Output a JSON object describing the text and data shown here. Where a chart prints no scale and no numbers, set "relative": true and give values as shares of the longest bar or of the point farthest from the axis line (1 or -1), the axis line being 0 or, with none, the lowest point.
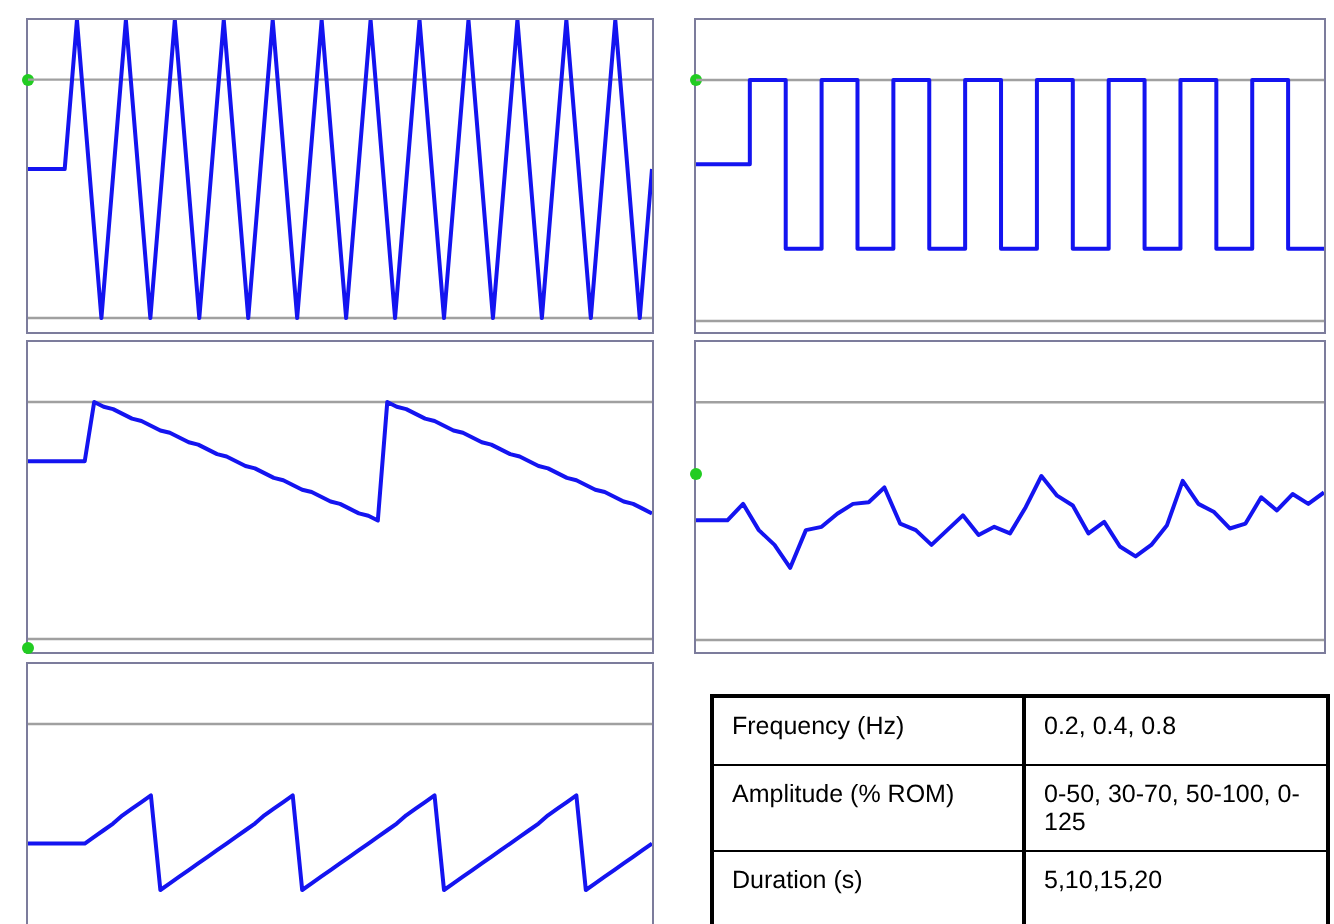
{
  "chart_data": [
    {
      "type": "line",
      "relative": true,
      "color": "#1414f0",
      "categories": [
        null,
        null,
        null,
        null,
        null,
        null,
        null,
        null,
        null,
        null,
        null,
        null,
        null,
        null,
        null,
        null,
        null,
        null,
        null,
        null,
        null,
        null,
        null,
        null,
        null,
        null,
        null,
        null,
        null,
        null,
        null,
        null,
        null,
        null,
        null,
        null,
        null,
        null,
        null,
        null,
        null,
        null,
        null,
        null,
        null,
        null,
        null,
        null,
        null,
        null,
        null,
        null
      ],
      "values": [
        0.5,
        0.5,
        0.5,
        0.5,
        1,
        0.5,
        0,
        0.5,
        1,
        0.5,
        0,
        0.5,
        1,
        0.5,
        0,
        0.5,
        1,
        0.5,
        0,
        0.5,
        1,
        0.5,
        0,
        0.5,
        1,
        0.5,
        0,
        0.5,
        1,
        0.5,
        0,
        0.5,
        1,
        0.5,
        0,
        0.5,
        1,
        0.5,
        0,
        0.5,
        1,
        0.5,
        0,
        0.5,
        1,
        0.5,
        0,
        0.5,
        1,
        0.5,
        0,
        0.5
      ],
      "ref_lines": [
        {
          "axis": "y",
          "value": 0.8,
          "color": "#a0a0a0"
        },
        {
          "axis": "y",
          "value": 0,
          "color": "#a0a0a0"
        }
      ]
    },
    {
      "type": "step",
      "relative": true,
      "color": "#1414f0",
      "categories": [
        null,
        null,
        null,
        null,
        null,
        null,
        null,
        null,
        null,
        null,
        null,
        null,
        null,
        null,
        null,
        null,
        null,
        null,
        null,
        null,
        null,
        null,
        null,
        null,
        null,
        null,
        null,
        null,
        null,
        null,
        null,
        null,
        null,
        null,
        null,
        null
      ],
      "values": [
        0.65,
        0.65,
        0.65,
        1,
        1,
        0.3,
        0.3,
        1,
        1,
        0.3,
        0.3,
        1,
        1,
        0.3,
        0.3,
        1,
        1,
        0.3,
        0.3,
        1,
        1,
        0.3,
        0.3,
        1,
        1,
        0.3,
        0.3,
        1,
        1,
        0.3,
        0.3,
        1,
        1,
        0.3,
        0.3,
        0.3
      ],
      "ref_lines": [
        {
          "axis": "y",
          "value": 1,
          "color": "#a0a0a0"
        },
        {
          "axis": "y",
          "value": 0,
          "color": "#a0a0a0"
        }
      ]
    },
    {
      "type": "line",
      "relative": true,
      "color": "#1414f0",
      "categories": [
        null,
        null,
        null,
        null,
        null,
        null,
        null,
        null,
        null,
        null,
        null,
        null,
        null,
        null,
        null,
        null,
        null,
        null,
        null,
        null,
        null,
        null,
        null,
        null,
        null,
        null,
        null,
        null,
        null,
        null,
        null,
        null,
        null,
        null,
        null,
        null,
        null,
        null,
        null,
        null,
        null,
        null,
        null,
        null,
        null,
        null,
        null,
        null,
        null,
        null,
        null,
        null,
        null,
        null,
        null,
        null,
        null,
        null,
        null,
        null,
        null,
        null,
        null,
        null,
        null,
        null,
        null
      ],
      "values": [
        0.75,
        0.75,
        0.75,
        0.75,
        0.75,
        0.75,
        0.75,
        1,
        0.98,
        0.97,
        0.95,
        0.93,
        0.92,
        0.9,
        0.88,
        0.87,
        0.85,
        0.83,
        0.82,
        0.8,
        0.78,
        0.77,
        0.75,
        0.73,
        0.72,
        0.7,
        0.68,
        0.67,
        0.65,
        0.63,
        0.62,
        0.6,
        0.58,
        0.57,
        0.55,
        0.53,
        0.52,
        0.5,
        1,
        0.98,
        0.97,
        0.95,
        0.93,
        0.92,
        0.9,
        0.88,
        0.87,
        0.85,
        0.83,
        0.82,
        0.8,
        0.78,
        0.77,
        0.75,
        0.73,
        0.72,
        0.7,
        0.68,
        0.67,
        0.65,
        0.63,
        0.62,
        0.6,
        0.58,
        0.57,
        0.55,
        0.53
      ],
      "ref_lines": [
        {
          "axis": "y",
          "value": 1,
          "color": "#a0a0a0"
        },
        {
          "axis": "y",
          "value": 0,
          "color": "#a0a0a0"
        }
      ]
    },
    {
      "type": "line",
      "relative": true,
      "color": "#1414f0",
      "categories": [
        null,
        null,
        null,
        null,
        null,
        null,
        null,
        null,
        null,
        null,
        null,
        null,
        null,
        null,
        null,
        null,
        null,
        null,
        null,
        null,
        null,
        null,
        null,
        null,
        null,
        null,
        null,
        null,
        null,
        null,
        null,
        null,
        null,
        null,
        null,
        null,
        null,
        null,
        null,
        null,
        null
      ],
      "values": [
        0.73,
        0.73,
        0.73,
        0.83,
        0.67,
        0.58,
        0.44,
        0.67,
        0.69,
        0.77,
        0.83,
        0.84,
        0.93,
        0.71,
        0.67,
        0.58,
        0.67,
        0.76,
        0.64,
        0.69,
        0.65,
        0.81,
        1,
        0.88,
        0.82,
        0.65,
        0.72,
        0.57,
        0.51,
        0.58,
        0.7,
        0.97,
        0.83,
        0.78,
        0.68,
        0.71,
        0.87,
        0.79,
        0.89,
        0.83,
        0.9
      ],
      "ref_lines": [
        {
          "axis": "y",
          "value": 1.45,
          "color": "#a0a0a0"
        },
        {
          "axis": "y",
          "value": 0,
          "color": "#a0a0a0"
        }
      ]
    },
    {
      "type": "line",
      "relative": true,
      "color": "#1414f0",
      "categories": [
        null,
        null,
        null,
        null,
        null,
        null,
        null,
        null,
        null,
        null,
        null,
        null,
        null,
        null,
        null,
        null,
        null,
        null,
        null,
        null,
        null,
        null,
        null,
        null,
        null,
        null,
        null,
        null,
        null,
        null,
        null,
        null,
        null,
        null,
        null,
        null,
        null,
        null,
        null,
        null,
        null,
        null,
        null,
        null,
        null,
        null,
        null,
        null,
        null,
        null,
        null,
        null,
        null,
        null,
        null,
        null,
        null,
        null,
        null,
        null,
        null,
        null,
        null,
        null,
        null,
        null,
        null
      ],
      "values": [
        -0.72,
        -0.72,
        -0.72,
        -0.72,
        -0.72,
        -0.72,
        -0.72,
        -0.68,
        -0.64,
        -0.6,
        -0.55,
        -0.51,
        -0.47,
        -0.43,
        -1,
        -0.96,
        -0.92,
        -0.88,
        -0.84,
        -0.8,
        -0.76,
        -0.72,
        -0.68,
        -0.64,
        -0.6,
        -0.55,
        -0.51,
        -0.47,
        -0.43,
        -1,
        -0.96,
        -0.92,
        -0.88,
        -0.84,
        -0.8,
        -0.76,
        -0.72,
        -0.68,
        -0.64,
        -0.6,
        -0.55,
        -0.51,
        -0.47,
        -0.43,
        -1,
        -0.96,
        -0.92,
        -0.88,
        -0.84,
        -0.8,
        -0.76,
        -0.72,
        -0.68,
        -0.64,
        -0.6,
        -0.55,
        -0.51,
        -0.47,
        -0.43,
        -1,
        -0.96,
        -0.92,
        -0.88,
        -0.84,
        -0.8,
        -0.76,
        -0.72
      ],
      "ref_lines": [
        {
          "axis": "y",
          "value": 0,
          "color": "#a0a0a0"
        }
      ]
    },
    {
      "type": "other",
      "annotations": [
        "Frequency (Hz)",
        "0.2, 0.4, 0.8",
        "Amplitude (% ROM)",
        "0-50, 30-70, 50-100, 0-125",
        "Duration (s)",
        "5,10,15,20"
      ]
    }
  ]
}
